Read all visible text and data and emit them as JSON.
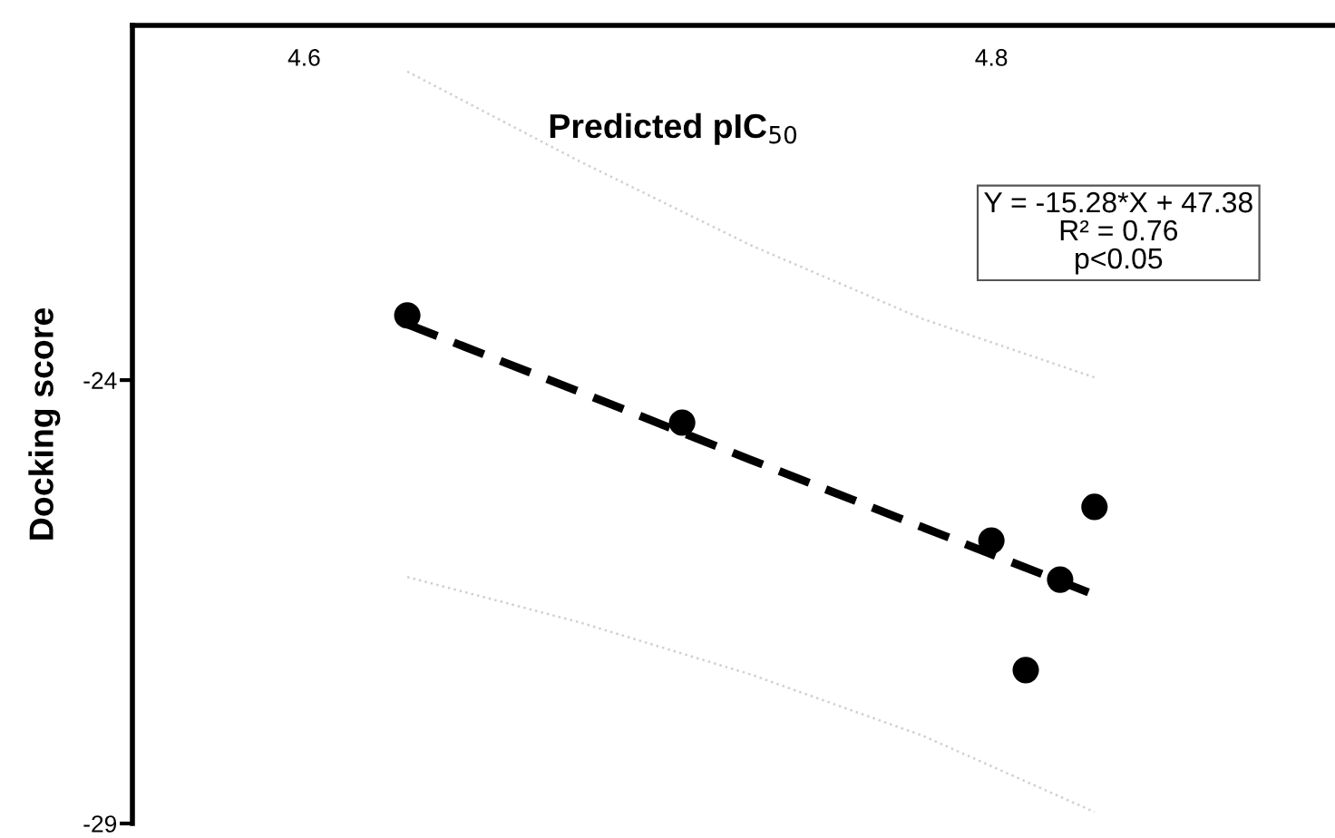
{
  "chart_data": {
    "type": "scatter",
    "xlabel": "Predicted pIC$_{50}$",
    "ylabel": "Docking score",
    "xlim": [
      4.55,
      4.9
    ],
    "xticks": [
      4.6,
      4.8
    ],
    "ylim": [
      -29,
      -20
    ],
    "yticks": [
      -24,
      -29
    ],
    "marker": "circle",
    "line_style": "dashed",
    "grid": false,
    "annotations": [
      "Y = -15.28*X + 47.38\nR² = 0.76\np<0.05"
    ],
    "series": [
      {
        "color": "#000000",
        "x": [
          4.63,
          4.71,
          4.8,
          4.83,
          4.82,
          4.81
        ],
        "values": [
          -23.27,
          -24.48,
          -25.81,
          -25.43,
          -26.25,
          -27.27
        ]
      },
      {
        "type": "line",
        "marker": "none",
        "color": "#000000",
        "x": [
          4.63,
          4.68,
          4.73,
          4.78,
          4.83
        ],
        "values": [
          -23.37,
          -24.13,
          -24.9,
          -25.66,
          -26.42
        ]
      },
      {
        "type": "line",
        "marker": "none",
        "line_style": "dotted",
        "color": "#d0d0d0",
        "x": [
          4.63,
          4.68,
          4.73,
          4.78,
          4.83
        ],
        "values": [
          -20.52,
          -21.53,
          -22.48,
          -23.31,
          -23.97
        ]
      },
      {
        "type": "line",
        "marker": "none",
        "line_style": "dotted",
        "color": "#d0d0d0",
        "x": [
          4.63,
          4.68,
          4.73,
          4.78,
          4.83
        ],
        "values": [
          -26.22,
          -26.73,
          -27.32,
          -28.01,
          -28.87
        ]
      }
    ]
  }
}
